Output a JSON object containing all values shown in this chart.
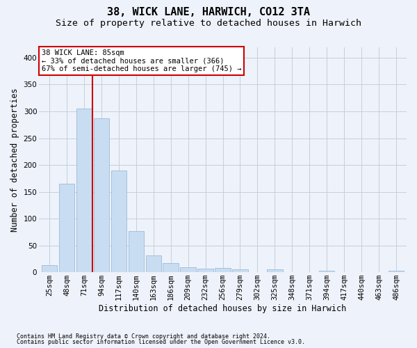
{
  "title": "38, WICK LANE, HARWICH, CO12 3TA",
  "subtitle": "Size of property relative to detached houses in Harwich",
  "xlabel": "Distribution of detached houses by size in Harwich",
  "ylabel": "Number of detached properties",
  "categories": [
    "25sqm",
    "48sqm",
    "71sqm",
    "94sqm",
    "117sqm",
    "140sqm",
    "163sqm",
    "186sqm",
    "209sqm",
    "232sqm",
    "256sqm",
    "279sqm",
    "302sqm",
    "325sqm",
    "348sqm",
    "371sqm",
    "394sqm",
    "417sqm",
    "440sqm",
    "463sqm",
    "486sqm"
  ],
  "values": [
    13,
    165,
    305,
    287,
    190,
    77,
    32,
    17,
    9,
    7,
    8,
    5,
    0,
    5,
    0,
    0,
    3,
    0,
    0,
    0,
    3
  ],
  "bar_color": "#c9ddf2",
  "bar_edge_color": "#9bbad8",
  "vline_index": 2.5,
  "vline_color": "#cc0000",
  "annotation_line1": "38 WICK LANE: 85sqm",
  "annotation_line2": "← 33% of detached houses are smaller (366)",
  "annotation_line3": "67% of semi-detached houses are larger (745) →",
  "annotation_box_color": "#ffffff",
  "annotation_box_edge": "#cc0000",
  "footnote1": "Contains HM Land Registry data © Crown copyright and database right 2024.",
  "footnote2": "Contains public sector information licensed under the Open Government Licence v3.0.",
  "bg_color": "#eef2fa",
  "grid_color": "#c5cfd8",
  "ylim_max": 420,
  "yticks": [
    0,
    50,
    100,
    150,
    200,
    250,
    300,
    350,
    400
  ],
  "title_fontsize": 11,
  "subtitle_fontsize": 9.5,
  "ylabel_fontsize": 8.5,
  "xlabel_fontsize": 8.5,
  "tick_fontsize": 7.5,
  "annot_fontsize": 7.5,
  "footnote_fontsize": 6.0
}
